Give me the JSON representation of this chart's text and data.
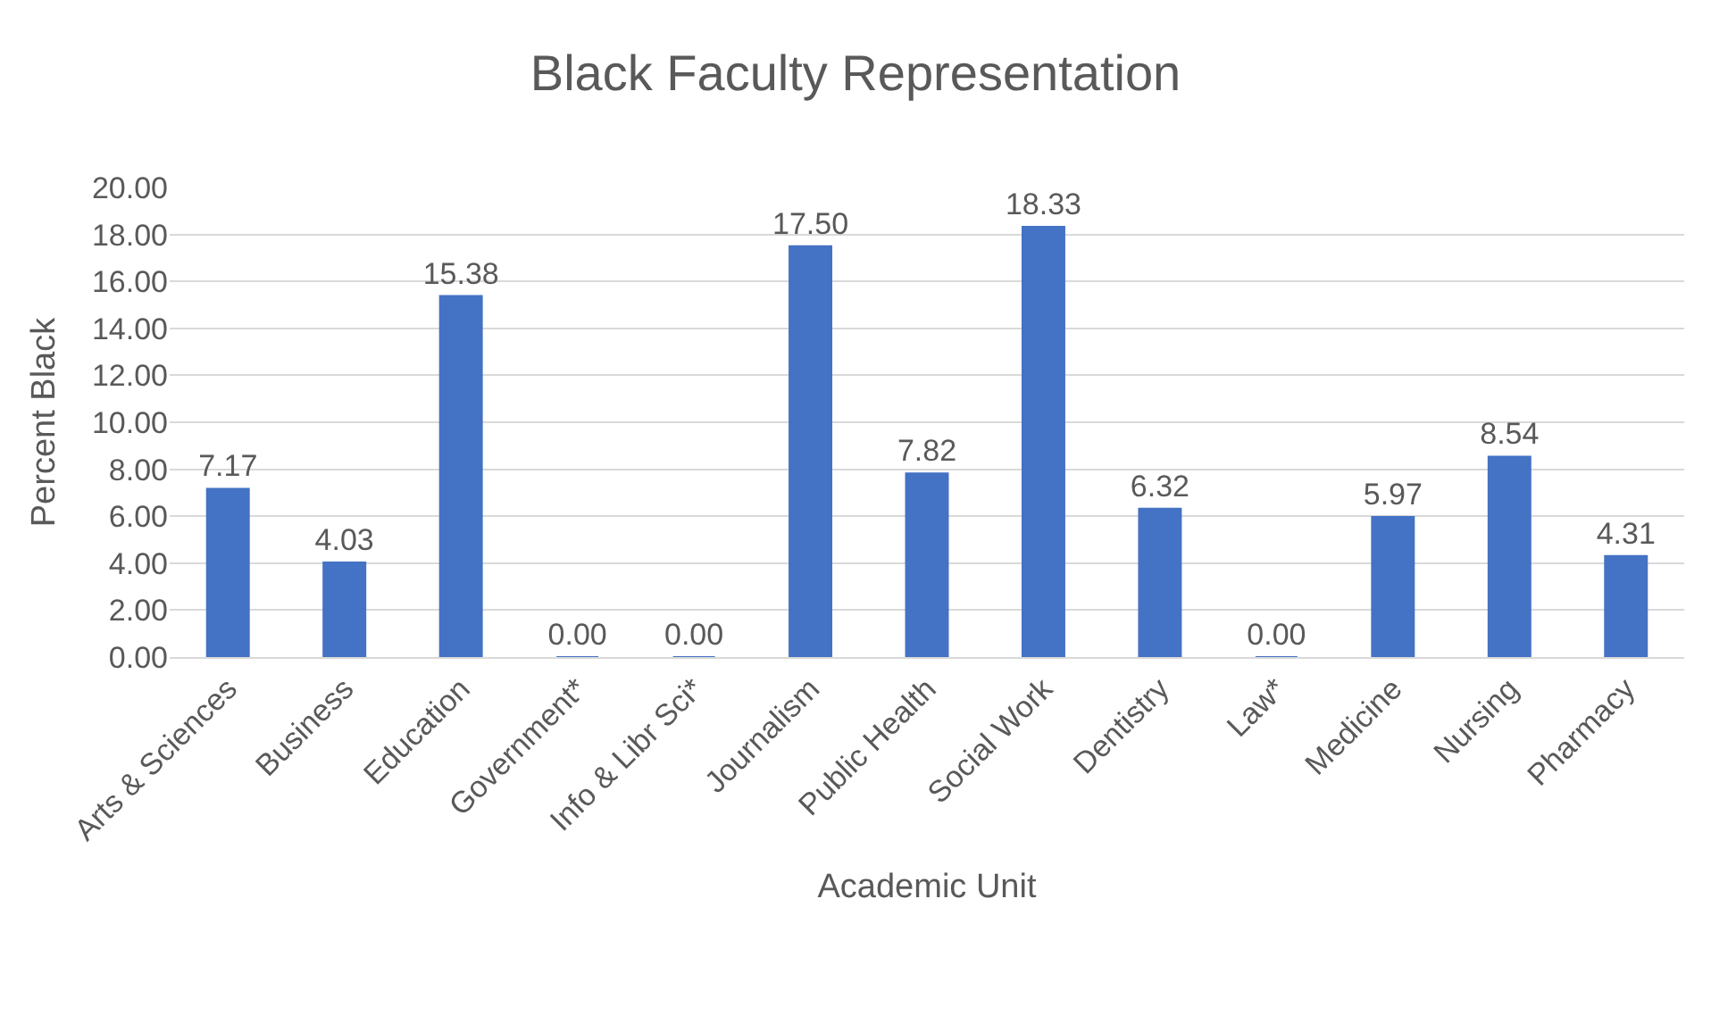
{
  "chart_data": {
    "type": "bar",
    "title": "Black Faculty Representation",
    "xlabel": "Academic Unit",
    "ylabel": "Percent Black",
    "categories": [
      "Arts & Sciences",
      "Business",
      "Education",
      "Government*",
      "Info & Libr Sci*",
      "Journalism",
      "Public Health",
      "Social Work",
      "Dentistry",
      "Law*",
      "Medicine",
      "Nursing",
      "Pharmacy"
    ],
    "values": [
      7.17,
      4.03,
      15.38,
      0.0,
      0.0,
      17.5,
      7.82,
      18.33,
      6.32,
      0.0,
      5.97,
      8.54,
      4.31
    ],
    "color": "#4472c4",
    "ylim": [
      0,
      20
    ],
    "yticks": [
      {
        "value": 0,
        "label": "0.00"
      },
      {
        "value": 2,
        "label": "2.00"
      },
      {
        "value": 4,
        "label": "4.00"
      },
      {
        "value": 6,
        "label": "6.00"
      },
      {
        "value": 8,
        "label": "8.00"
      },
      {
        "value": 10,
        "label": "10.00"
      },
      {
        "value": 12,
        "label": "12.00"
      },
      {
        "value": 14,
        "label": "14.00"
      },
      {
        "value": 16,
        "label": "16.00"
      },
      {
        "value": 18,
        "label": "18.00"
      },
      {
        "value": 20,
        "label": "20.00"
      }
    ],
    "value_labels": [
      "7.17",
      "4.03",
      "15.38",
      "0.00",
      "0.00",
      "17.50",
      "7.82",
      "18.33",
      "6.32",
      "0.00",
      "5.97",
      "8.54",
      "4.31"
    ],
    "grid": "y",
    "legend": false
  }
}
